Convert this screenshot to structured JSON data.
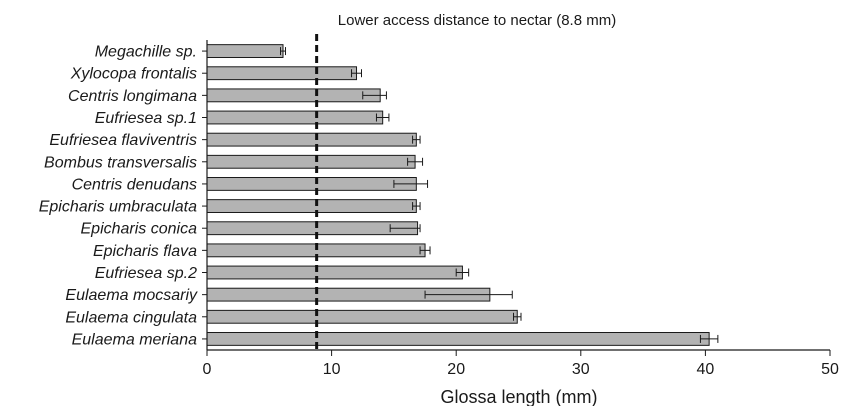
{
  "chart_data": {
    "type": "bar",
    "orientation": "horizontal",
    "title": "",
    "xlabel": "Glossa length (mm)",
    "ylabel": "",
    "xlim": [
      0,
      50
    ],
    "xticks": [
      0,
      10,
      20,
      30,
      40,
      50
    ],
    "grid": false,
    "bar_color": "#b3b3b3",
    "categories": [
      "Megachille sp.",
      "Xylocopa frontalis",
      "Centris longimana",
      "Eufriesea sp.1",
      "Eufriesea flaviventris",
      "Bombus transversalis",
      "Centris denudans",
      "Epicharis umbraculata",
      "Epicharis conica",
      "Epicharis flava",
      "Eufriesea sp.2",
      "Eulaema mocsariy",
      "Eulaema cingulata",
      "Eulaema meriana"
    ],
    "values": [
      6.1,
      12.0,
      13.9,
      14.1,
      16.8,
      16.7,
      16.8,
      16.8,
      16.9,
      17.5,
      20.5,
      22.7,
      24.9,
      40.3
    ],
    "error": [
      0.2,
      0.4,
      0.5,
      0.5,
      0.3,
      0.6,
      0.9,
      0.3,
      0.2,
      0.4,
      0.5,
      1.8,
      0.3,
      0.7
    ],
    "error_low": [
      0.2,
      0.4,
      1.4,
      0.5,
      0.3,
      0.6,
      1.8,
      0.3,
      2.2,
      0.4,
      0.5,
      5.2,
      0.3,
      0.7
    ],
    "reference_line": {
      "value": 8.8,
      "label": "Lower access distance to nectar (8.8 mm)",
      "style": "dashed"
    }
  }
}
